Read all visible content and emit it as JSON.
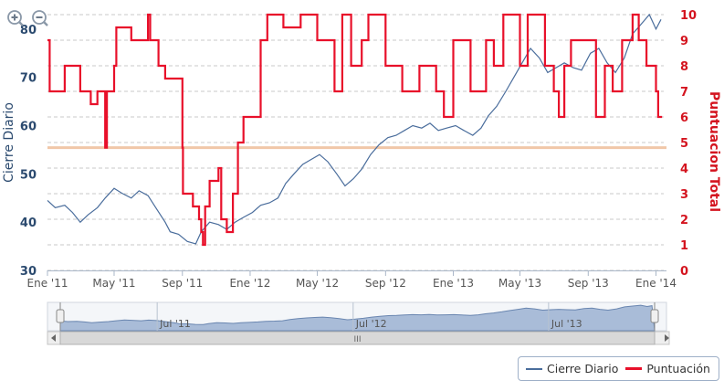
{
  "colors": {
    "series_daily": "#4a6d9c",
    "series_score": "#e8102a",
    "left_axis": "#2b4a6f",
    "right_axis": "#d4141f",
    "reference_line": "#f1c7a8",
    "grid": "#c8c8c8",
    "navigator_fill": "#a9bcd8",
    "navigator_line": "#6a86b0"
  },
  "icons": {
    "zoom_in": "zoom-in-icon",
    "zoom_out": "zoom-out-icon"
  },
  "legend": {
    "items": [
      {
        "label": "Cierre Diario",
        "color": "#4a6d9c"
      },
      {
        "label": "Puntuación",
        "color": "#e8102a"
      }
    ]
  },
  "navigator": {
    "labels": [
      "Jul '11",
      "Jul '12",
      "Jul '13"
    ],
    "scroll_grip": "III"
  },
  "chart_data": {
    "type": "line",
    "title": "",
    "grid": true,
    "legend_position": "bottom-right",
    "x_axis": {
      "ticks": [
        "Ene '11",
        "May '11",
        "Sep '11",
        "Ene '12",
        "May '12",
        "Sep '12",
        "Ene '13",
        "May '13",
        "Sep '13",
        "Ene '14"
      ],
      "range": [
        "2011-01-01",
        "2014-01-15"
      ]
    },
    "y_left": {
      "label": "Cierre Diario",
      "ticks": [
        30,
        40,
        50,
        60,
        70,
        80
      ],
      "range": [
        30,
        83
      ]
    },
    "y_right": {
      "label": "Puntuacion Total",
      "ticks": [
        0,
        1,
        2,
        3,
        4,
        5,
        6,
        7,
        8,
        9,
        10
      ],
      "range": [
        0,
        10
      ]
    },
    "reference_line": {
      "axis": "right",
      "value": 4.8
    },
    "series": [
      {
        "name": "Cierre Diario",
        "axis": "left",
        "points": [
          [
            "2011-01-01",
            44.5
          ],
          [
            "2011-01-15",
            43
          ],
          [
            "2011-02-01",
            43.5
          ],
          [
            "2011-02-15",
            42
          ],
          [
            "2011-03-01",
            40
          ],
          [
            "2011-03-15",
            41.5
          ],
          [
            "2011-04-01",
            43
          ],
          [
            "2011-04-15",
            45
          ],
          [
            "2011-05-01",
            47
          ],
          [
            "2011-05-15",
            46
          ],
          [
            "2011-06-01",
            45
          ],
          [
            "2011-06-15",
            46.5
          ],
          [
            "2011-07-01",
            45.5
          ],
          [
            "2011-07-15",
            43
          ],
          [
            "2011-08-01",
            40
          ],
          [
            "2011-08-10",
            38
          ],
          [
            "2011-08-25",
            37.5
          ],
          [
            "2011-09-10",
            36
          ],
          [
            "2011-09-25",
            35.5
          ],
          [
            "2011-10-05",
            38
          ],
          [
            "2011-10-20",
            40
          ],
          [
            "2011-11-05",
            39.5
          ],
          [
            "2011-11-20",
            38.5
          ],
          [
            "2011-12-05",
            40
          ],
          [
            "2011-12-20",
            41
          ],
          [
            "2012-01-05",
            42
          ],
          [
            "2012-01-20",
            43.5
          ],
          [
            "2012-02-05",
            44
          ],
          [
            "2012-02-20",
            45
          ],
          [
            "2012-03-05",
            48
          ],
          [
            "2012-03-20",
            50
          ],
          [
            "2012-04-05",
            52
          ],
          [
            "2012-04-20",
            53
          ],
          [
            "2012-05-05",
            54
          ],
          [
            "2012-05-20",
            52.5
          ],
          [
            "2012-06-05",
            50
          ],
          [
            "2012-06-20",
            47.5
          ],
          [
            "2012-07-05",
            49
          ],
          [
            "2012-07-20",
            51
          ],
          [
            "2012-08-05",
            54
          ],
          [
            "2012-08-20",
            56
          ],
          [
            "2012-09-05",
            57.5
          ],
          [
            "2012-09-20",
            58
          ],
          [
            "2012-10-05",
            59
          ],
          [
            "2012-10-20",
            60
          ],
          [
            "2012-11-05",
            59.5
          ],
          [
            "2012-11-20",
            60.5
          ],
          [
            "2012-12-05",
            59
          ],
          [
            "2012-12-20",
            59.5
          ],
          [
            "2013-01-05",
            60
          ],
          [
            "2013-01-20",
            59
          ],
          [
            "2013-02-05",
            58
          ],
          [
            "2013-02-20",
            59.5
          ],
          [
            "2013-03-05",
            62
          ],
          [
            "2013-03-20",
            64
          ],
          [
            "2013-04-05",
            67
          ],
          [
            "2013-04-20",
            70
          ],
          [
            "2013-05-05",
            73
          ],
          [
            "2013-05-20",
            76
          ],
          [
            "2013-06-05",
            74
          ],
          [
            "2013-06-20",
            71
          ],
          [
            "2013-07-05",
            72
          ],
          [
            "2013-07-20",
            73
          ],
          [
            "2013-08-05",
            72
          ],
          [
            "2013-08-20",
            71.5
          ],
          [
            "2013-09-05",
            75
          ],
          [
            "2013-09-20",
            76
          ],
          [
            "2013-10-05",
            73
          ],
          [
            "2013-10-20",
            71
          ],
          [
            "2013-11-05",
            74
          ],
          [
            "2013-11-20",
            79
          ],
          [
            "2013-12-05",
            81
          ],
          [
            "2013-12-20",
            83
          ],
          [
            "2014-01-01",
            80
          ],
          [
            "2014-01-10",
            82
          ]
        ]
      },
      {
        "name": "Puntuación",
        "axis": "right",
        "points": [
          [
            "2011-01-01",
            9
          ],
          [
            "2011-01-05",
            7
          ],
          [
            "2011-02-01",
            8
          ],
          [
            "2011-03-01",
            7
          ],
          [
            "2011-03-20",
            6.5
          ],
          [
            "2011-04-01",
            7
          ],
          [
            "2011-04-15",
            4.8
          ],
          [
            "2011-04-18",
            7
          ],
          [
            "2011-05-01",
            8
          ],
          [
            "2011-05-05",
            9.5
          ],
          [
            "2011-06-01",
            9
          ],
          [
            "2011-07-01",
            10
          ],
          [
            "2011-07-05",
            9
          ],
          [
            "2011-07-20",
            8
          ],
          [
            "2011-08-01",
            7.5
          ],
          [
            "2011-09-01",
            4.8
          ],
          [
            "2011-09-02",
            3
          ],
          [
            "2011-09-20",
            2.5
          ],
          [
            "2011-10-01",
            2
          ],
          [
            "2011-10-05",
            1.5
          ],
          [
            "2011-10-08",
            1
          ],
          [
            "2011-10-12",
            2.5
          ],
          [
            "2011-10-20",
            3.5
          ],
          [
            "2011-11-05",
            4
          ],
          [
            "2011-11-10",
            2
          ],
          [
            "2011-11-20",
            1.5
          ],
          [
            "2011-12-01",
            3
          ],
          [
            "2011-12-10",
            5
          ],
          [
            "2011-12-20",
            6
          ],
          [
            "2012-01-20",
            9
          ],
          [
            "2012-02-01",
            10
          ],
          [
            "2012-03-01",
            9.5
          ],
          [
            "2012-04-01",
            10
          ],
          [
            "2012-05-01",
            9
          ],
          [
            "2012-06-01",
            7
          ],
          [
            "2012-06-15",
            10
          ],
          [
            "2012-07-01",
            8
          ],
          [
            "2012-07-20",
            9
          ],
          [
            "2012-08-01",
            10
          ],
          [
            "2012-09-01",
            8
          ],
          [
            "2012-10-01",
            7
          ],
          [
            "2012-11-01",
            8
          ],
          [
            "2012-12-01",
            7
          ],
          [
            "2012-12-15",
            6
          ],
          [
            "2013-01-01",
            9
          ],
          [
            "2013-02-01",
            7
          ],
          [
            "2013-03-01",
            9
          ],
          [
            "2013-03-15",
            8
          ],
          [
            "2013-04-01",
            10
          ],
          [
            "2013-05-01",
            8
          ],
          [
            "2013-05-15",
            10
          ],
          [
            "2013-06-15",
            8
          ],
          [
            "2013-07-01",
            7
          ],
          [
            "2013-07-10",
            6
          ],
          [
            "2013-07-20",
            8
          ],
          [
            "2013-08-01",
            9
          ],
          [
            "2013-09-01",
            9
          ],
          [
            "2013-09-15",
            6
          ],
          [
            "2013-10-01",
            8
          ],
          [
            "2013-10-15",
            7
          ],
          [
            "2013-11-01",
            9
          ],
          [
            "2013-11-20",
            10
          ],
          [
            "2013-12-01",
            9
          ],
          [
            "2013-12-15",
            8
          ],
          [
            "2014-01-01",
            7
          ],
          [
            "2014-01-05",
            6
          ],
          [
            "2014-01-12",
            6
          ]
        ]
      }
    ]
  }
}
